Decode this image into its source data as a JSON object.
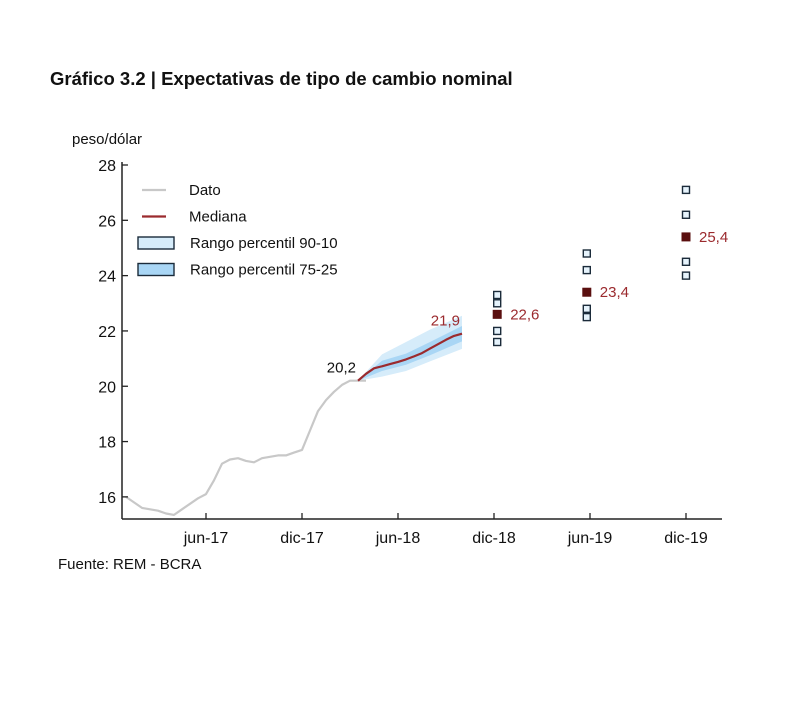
{
  "title": "Gráfico 3.2 | Expectativas de tipo de cambio nominal",
  "source": "Fuente: REM - BCRA",
  "colors": {
    "dato": "#c8c8c8",
    "mediana": "#9b2a2e",
    "band_90_10": "#d6ecfa",
    "band_75_25": "#a9d6f5",
    "marker_border": "#1b2b3a",
    "marker_median": "#5a0f0f",
    "annotation": "#9b2a2e",
    "axis": "#222222"
  },
  "chart_data": {
    "type": "line",
    "ylabel": "peso/dólar",
    "ylim": [
      15.2,
      28
    ],
    "yticks": [
      16,
      18,
      20,
      22,
      24,
      26,
      28
    ],
    "x_axis": {
      "range": [
        0,
        36
      ],
      "ticks": [
        {
          "label": "jun-17",
          "x": 5
        },
        {
          "label": "dic-17",
          "x": 11
        },
        {
          "label": "jun-18",
          "x": 17
        },
        {
          "label": "dic-18",
          "x": 23
        },
        {
          "label": "jun-19",
          "x": 29
        },
        {
          "label": "dic-19",
          "x": 35
        }
      ]
    },
    "legend": [
      {
        "label": "Dato",
        "kind": "line",
        "key": "dato"
      },
      {
        "label": "Mediana",
        "kind": "line",
        "key": "mediana"
      },
      {
        "label": "Rango percentil 90-10",
        "kind": "box",
        "key": "band_90_10"
      },
      {
        "label": "Rango percentil 75-25",
        "kind": "box",
        "key": "band_75_25"
      }
    ],
    "dato": {
      "name": "Dato",
      "x": [
        0,
        0.5,
        1,
        1.5,
        2,
        2.5,
        3,
        3.5,
        4,
        4.5,
        5,
        5.5,
        6,
        6.5,
        7,
        7.5,
        8,
        8.5,
        9,
        9.5,
        10,
        10.5,
        11,
        11.5,
        12,
        12.5,
        13,
        13.5,
        14,
        14.5,
        15
      ],
      "y": [
        16.0,
        15.8,
        15.6,
        15.55,
        15.5,
        15.4,
        15.35,
        15.55,
        15.75,
        15.95,
        16.1,
        16.6,
        17.2,
        17.35,
        17.4,
        17.3,
        17.25,
        17.4,
        17.45,
        17.5,
        17.5,
        17.6,
        17.7,
        18.4,
        19.1,
        19.5,
        19.8,
        20.05,
        20.2,
        20.2,
        20.2
      ]
    },
    "mediana": {
      "name": "Mediana",
      "x": [
        14.5,
        15,
        15.5,
        16,
        16.5,
        17,
        17.5,
        18,
        18.5,
        19,
        19.5,
        20,
        20.5,
        21
      ],
      "y": [
        20.2,
        20.45,
        20.65,
        20.72,
        20.8,
        20.88,
        20.97,
        21.08,
        21.2,
        21.36,
        21.52,
        21.68,
        21.82,
        21.9
      ]
    },
    "band_90_10": {
      "name": "Rango percentil 90-10",
      "x": [
        14.5,
        16,
        17.5,
        19,
        21
      ],
      "low": [
        20.2,
        20.35,
        20.55,
        20.9,
        21.35
      ],
      "high": [
        20.2,
        21.15,
        21.6,
        22.05,
        22.55
      ]
    },
    "band_75_25": {
      "name": "Rango percentil 75-25",
      "x": [
        14.5,
        16,
        17.5,
        19,
        21
      ],
      "low": [
        20.2,
        20.55,
        20.78,
        21.12,
        21.62
      ],
      "high": [
        20.2,
        20.92,
        21.18,
        21.6,
        22.18
      ]
    },
    "period_markers": [
      {
        "x": 23.2,
        "median": 22.6,
        "percentiles": [
          21.6,
          22.0,
          23.0,
          23.3
        ],
        "label": "22,6"
      },
      {
        "x": 28.8,
        "median": 23.4,
        "percentiles": [
          22.5,
          22.8,
          24.2,
          24.8
        ],
        "label": "23,4"
      },
      {
        "x": 35.0,
        "median": 25.4,
        "percentiles": [
          24.0,
          24.5,
          26.2,
          27.1
        ],
        "label": "25,4"
      }
    ],
    "annotations": [
      {
        "text": "20,2",
        "x": 14.5,
        "y": 20.2,
        "color": "black"
      },
      {
        "text": "21,9",
        "x": 21,
        "y": 21.9,
        "color": "accent"
      }
    ]
  }
}
